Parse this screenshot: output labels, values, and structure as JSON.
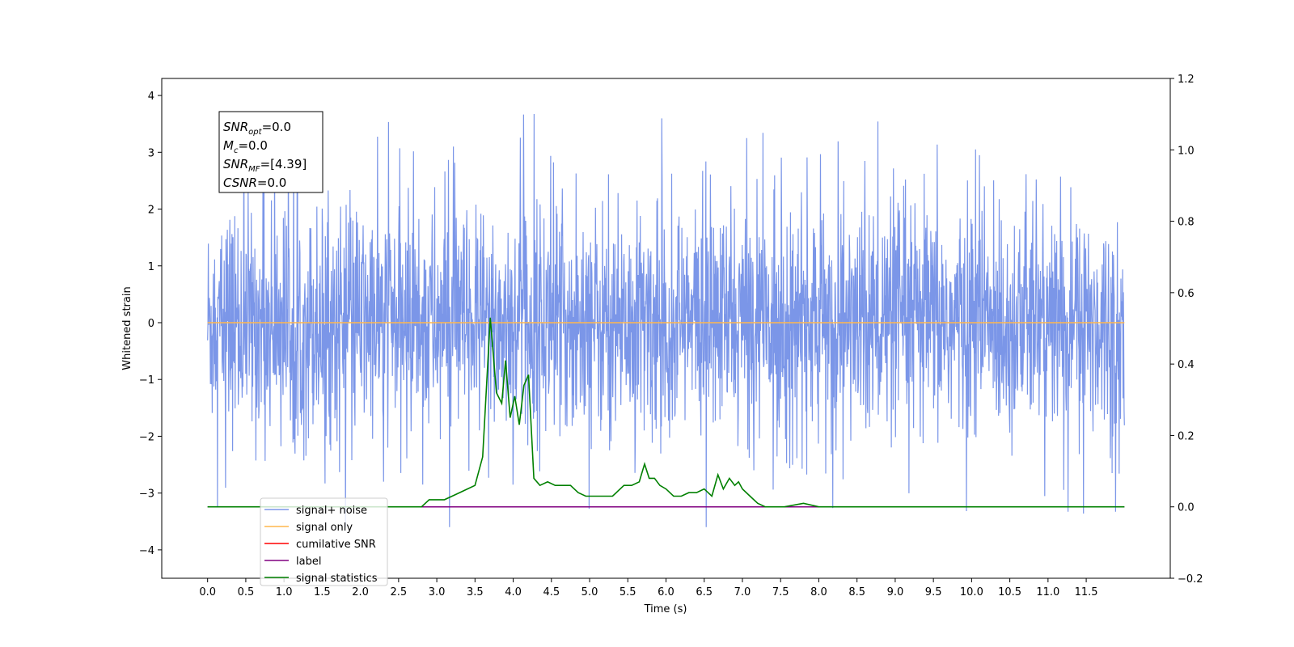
{
  "chart_data": {
    "type": "line",
    "xlabel": "Time (s)",
    "ylabel": "Whitened strain",
    "xlim": [
      -0.6,
      12.6
    ],
    "ylim": [
      -4.5,
      4.3
    ],
    "y2lim": [
      -0.2,
      1.2
    ],
    "x_ticks": [
      0.0,
      0.5,
      1.0,
      1.5,
      2.0,
      2.5,
      3.0,
      3.5,
      4.0,
      4.5,
      5.0,
      5.5,
      6.0,
      6.5,
      7.0,
      7.5,
      8.0,
      8.5,
      9.0,
      9.5,
      10.0,
      10.5,
      11.0,
      11.5
    ],
    "x_tick_labels": [
      "0.0",
      "0.5",
      "1.0",
      "1.5",
      "2.0",
      "2.5",
      "3.0",
      "3.5",
      "4.0",
      "4.5",
      "5.0",
      "5.5",
      "6.0",
      "6.5",
      "7.0",
      "7.5",
      "8.0",
      "8.5",
      "9.0",
      "9.5",
      "10.0",
      "10.5",
      "11.0",
      "11.5"
    ],
    "y_ticks": [
      4,
      3,
      2,
      1,
      0,
      -1,
      -2,
      -3,
      -4
    ],
    "y_tick_labels": [
      "4",
      "3",
      "2",
      "1",
      "0",
      "−1",
      "−2",
      "−3",
      "−4"
    ],
    "y2_ticks": [
      1.2,
      1.0,
      0.8,
      0.6,
      0.4,
      0.2,
      0.0,
      -0.2
    ],
    "y2_tick_labels": [
      "1.2",
      "1.0",
      "0.8",
      "0.6",
      "0.4",
      "0.2",
      "0.0",
      "−0.2"
    ],
    "grid": false,
    "legend_position": "lower-left",
    "info_box": {
      "lines": [
        {
          "main": "SNR",
          "sub": "opt",
          "value": "=0.0"
        },
        {
          "main": "M",
          "sub": "c",
          "value": "=0.0"
        },
        {
          "main": "SNR",
          "sub": "MF",
          "value": "=[4.39]"
        },
        {
          "main": "CSNR",
          "sub": "",
          "value": "=0.0"
        }
      ]
    },
    "series": [
      {
        "name": "signal+ noise",
        "color": "#7b96e8",
        "axis": "left",
        "style": "noise",
        "x_range": [
          0.0,
          12.0
        ],
        "envelope_upper": 2.4,
        "envelope_lower": -2.2,
        "peak_range": [
          -3.6,
          3.9
        ]
      },
      {
        "name": "signal only",
        "color": "#ffb74d",
        "axis": "left",
        "x": [
          0.0,
          12.0
        ],
        "values": [
          0.0,
          0.0
        ]
      },
      {
        "name": "cumilative SNR",
        "color": "#ff0000",
        "axis": "left",
        "x": [],
        "values": []
      },
      {
        "name": "label",
        "color": "#800080",
        "axis": "right",
        "x": [
          0.0,
          12.0
        ],
        "values": [
          0.0,
          0.0
        ]
      },
      {
        "name": "signal statistics",
        "color": "#008000",
        "axis": "right",
        "x": [
          0.0,
          2.8,
          2.9,
          3.0,
          3.1,
          3.2,
          3.3,
          3.4,
          3.5,
          3.6,
          3.7,
          3.78,
          3.85,
          3.9,
          3.96,
          4.02,
          4.08,
          4.14,
          4.2,
          4.27,
          4.35,
          4.45,
          4.55,
          4.65,
          4.75,
          4.85,
          4.95,
          5.05,
          5.15,
          5.3,
          5.45,
          5.55,
          5.65,
          5.72,
          5.78,
          5.85,
          5.92,
          6.0,
          6.1,
          6.2,
          6.3,
          6.4,
          6.5,
          6.6,
          6.68,
          6.75,
          6.83,
          6.9,
          6.95,
          7.0,
          7.1,
          7.2,
          7.3,
          7.4,
          7.55,
          7.8,
          8.0,
          8.2,
          8.6,
          11.0,
          11.5,
          12.0
        ],
        "values": [
          0.0,
          0.0,
          0.02,
          0.02,
          0.02,
          0.03,
          0.04,
          0.05,
          0.06,
          0.14,
          0.53,
          0.32,
          0.29,
          0.41,
          0.25,
          0.31,
          0.23,
          0.34,
          0.37,
          0.08,
          0.06,
          0.07,
          0.06,
          0.06,
          0.06,
          0.04,
          0.03,
          0.03,
          0.03,
          0.03,
          0.06,
          0.06,
          0.07,
          0.12,
          0.08,
          0.08,
          0.06,
          0.05,
          0.03,
          0.03,
          0.04,
          0.04,
          0.05,
          0.03,
          0.09,
          0.05,
          0.08,
          0.06,
          0.07,
          0.05,
          0.03,
          0.01,
          0.0,
          0.0,
          0.0,
          0.01,
          0.0,
          0.0,
          0.0,
          0.0,
          0.0,
          0.0
        ]
      }
    ]
  }
}
